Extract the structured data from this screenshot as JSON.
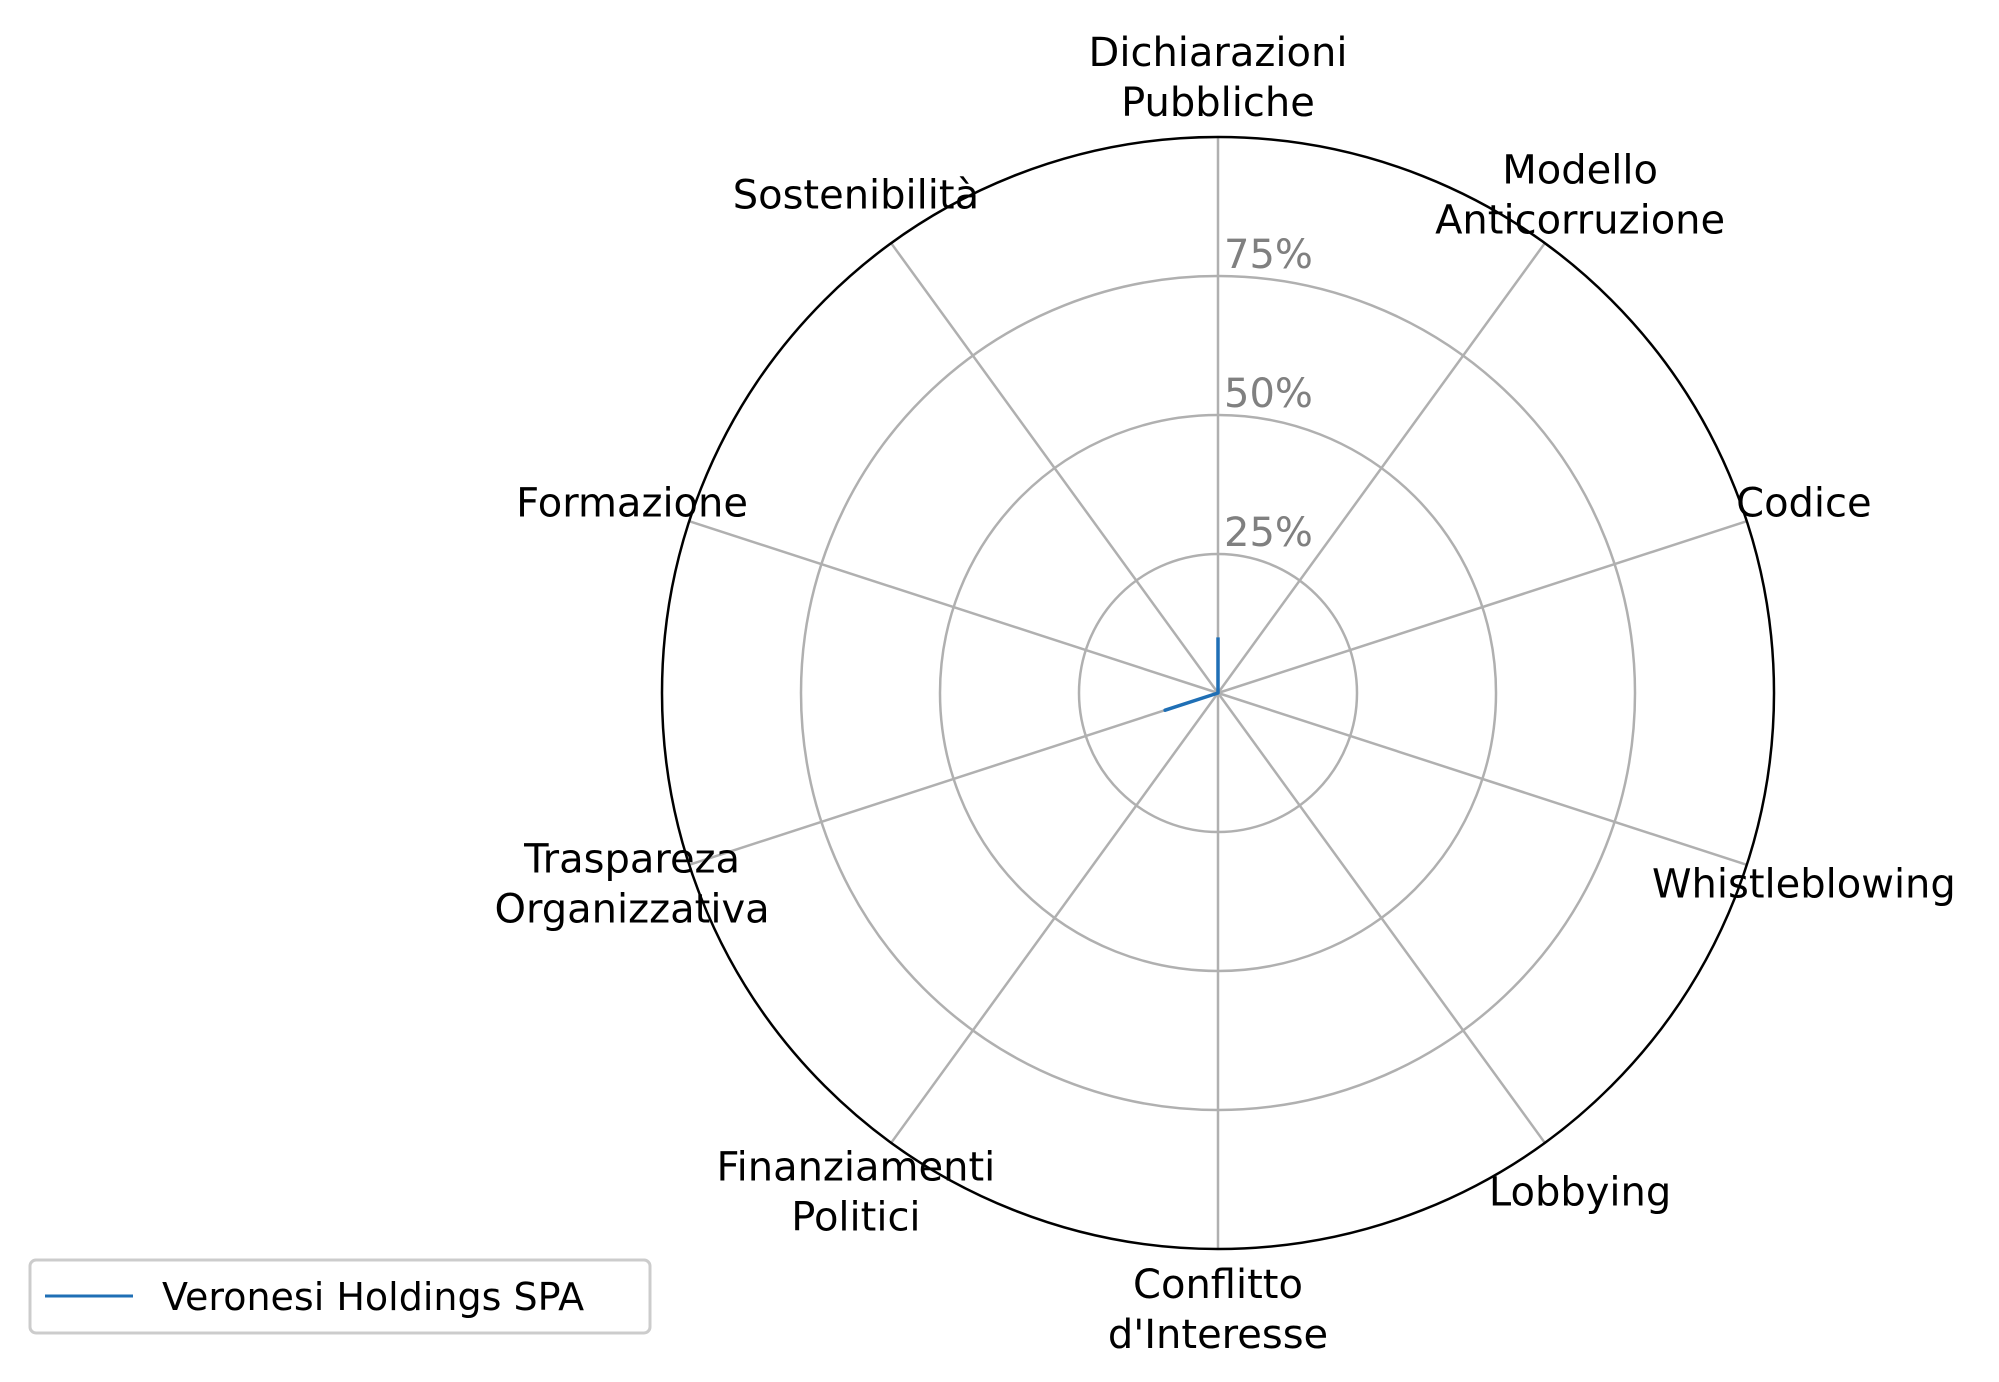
{
  "chart_data": {
    "type": "radar",
    "categories": [
      [
        "Dichiarazioni",
        "Pubbliche"
      ],
      [
        "Modello",
        "Anticorruzione"
      ],
      [
        "Codice"
      ],
      [
        "Whistleblowing"
      ],
      [
        "Lobbying"
      ],
      [
        "Conflitto",
        "d'Interesse"
      ],
      [
        "Finanziamenti",
        "Politici"
      ],
      [
        "Traspareza",
        "Organizzativa"
      ],
      [
        "Formazione"
      ],
      [
        "Sostenibilità"
      ]
    ],
    "rticks": [
      25,
      50,
      75
    ],
    "rtick_labels": [
      "25%",
      "50%",
      "75%"
    ],
    "rlim": [
      0,
      100
    ],
    "series": [
      {
        "name": "Veronesi Holdings SPA",
        "color": "#1f6fb5",
        "values": [
          10,
          0,
          0,
          0,
          0,
          0,
          0,
          10,
          0,
          0
        ]
      }
    ],
    "legend_position": "lower-left",
    "grid_color": "#b0b0b0",
    "outline_color": "#000000"
  }
}
